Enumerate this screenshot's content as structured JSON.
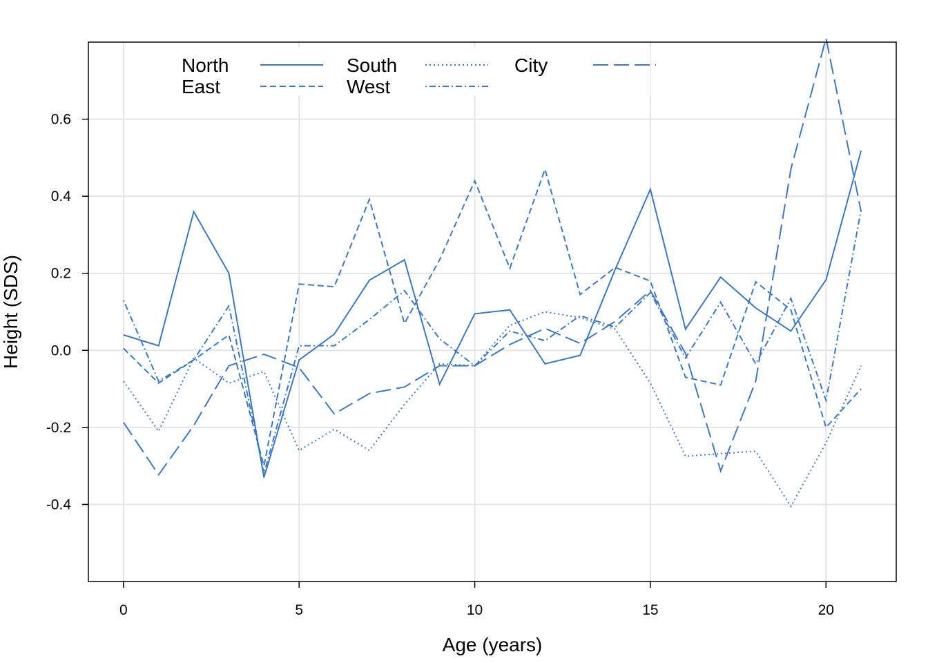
{
  "chart_data": {
    "type": "line",
    "title": "",
    "xlabel": "Age (years)",
    "ylabel": "Height (SDS)",
    "xlim": [
      -1,
      22
    ],
    "ylim": [
      -0.6,
      0.8
    ],
    "xticks": [
      0,
      5,
      10,
      15,
      20
    ],
    "xtick_labels": [
      "0",
      "5",
      "10",
      "15",
      "20"
    ],
    "yticks": [
      -0.4,
      -0.2,
      0.0,
      0.2,
      0.4,
      0.6
    ],
    "ytick_labels": [
      "-0.4",
      "-0.2",
      "0.0",
      "0.2",
      "0.4",
      "0.6"
    ],
    "grid": true,
    "legend_position": "top-left",
    "line_color": "#3a78c4",
    "grid_color": "#e4e4e4",
    "x": [
      0,
      1,
      2,
      3,
      4,
      5,
      6,
      7,
      8,
      9,
      10,
      11,
      12,
      13,
      14,
      15,
      16,
      17,
      18,
      19,
      20,
      21
    ],
    "series": [
      {
        "name": "North",
        "dash": "solid",
        "values": [
          0.04,
          0.012,
          0.36,
          0.2,
          -0.33,
          -0.025,
          0.042,
          0.182,
          0.235,
          -0.088,
          0.095,
          0.105,
          -0.035,
          -0.013,
          0.21,
          0.418,
          0.055,
          0.19,
          0.11,
          0.05,
          0.183,
          0.518
        ]
      },
      {
        "name": "South",
        "dash": "dotted",
        "values": [
          -0.08,
          -0.21,
          -0.02,
          -0.085,
          -0.055,
          -0.26,
          -0.205,
          -0.26,
          -0.14,
          -0.035,
          -0.04,
          0.065,
          0.1,
          0.085,
          0.055,
          -0.085,
          -0.275,
          -0.268,
          -0.262,
          -0.405,
          -0.24,
          -0.04
        ]
      },
      {
        "name": "City",
        "dash": "longdash",
        "values": [
          -0.187,
          -0.323,
          -0.195,
          -0.04,
          -0.01,
          -0.045,
          -0.165,
          -0.112,
          -0.095,
          -0.04,
          -0.04,
          0.015,
          0.057,
          0.018,
          0.075,
          0.155,
          -0.008,
          -0.313,
          -0.08,
          0.47,
          0.81,
          0.36
        ]
      },
      {
        "name": "East",
        "dash": "dashed",
        "values": [
          0.005,
          -0.085,
          -0.025,
          0.04,
          -0.3,
          0.172,
          0.165,
          0.392,
          0.07,
          0.235,
          0.44,
          0.213,
          0.47,
          0.145,
          0.215,
          0.18,
          -0.07,
          -0.09,
          0.178,
          0.105,
          -0.2,
          -0.1
        ]
      },
      {
        "name": "West",
        "dash": "dotdash",
        "values": [
          0.13,
          -0.08,
          -0.025,
          0.115,
          -0.32,
          0.012,
          0.012,
          0.08,
          0.155,
          0.03,
          -0.04,
          0.05,
          0.025,
          0.09,
          0.06,
          0.15,
          -0.02,
          0.125,
          -0.035,
          0.135,
          -0.13,
          0.365
        ]
      }
    ]
  }
}
